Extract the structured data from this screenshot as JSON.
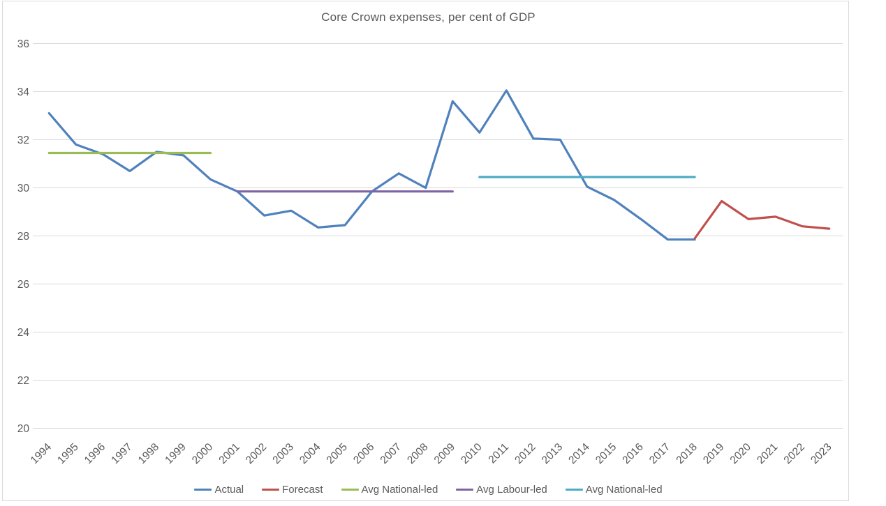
{
  "title": "Core Crown expenses, per cent of GDP",
  "chart_data": {
    "type": "line",
    "title": "Core Crown expenses, per cent of GDP",
    "x": [
      1994,
      1995,
      1996,
      1997,
      1998,
      1999,
      2000,
      2001,
      2002,
      2003,
      2004,
      2005,
      2006,
      2007,
      2008,
      2009,
      2010,
      2011,
      2012,
      2013,
      2014,
      2015,
      2016,
      2017,
      2018,
      2019,
      2020,
      2021,
      2022,
      2023
    ],
    "yticks": [
      20,
      22,
      24,
      26,
      28,
      30,
      32,
      34,
      36
    ],
    "ylim": [
      20,
      36
    ],
    "ylabel": "",
    "xlabel": "",
    "grid": true,
    "legend_position": "bottom",
    "axis_text_color": "#595959",
    "grid_color": "#d9d9d9",
    "frame_color": "#d9d9d9",
    "title_color": "#595959",
    "line_width": 3.2,
    "series": [
      {
        "name": "Actual",
        "color": "#4F81BD",
        "x_start": 1994,
        "values": [
          33.1,
          31.8,
          31.4,
          30.7,
          31.5,
          31.35,
          30.35,
          29.85,
          28.85,
          29.05,
          28.35,
          28.45,
          29.85,
          30.6,
          30.0,
          33.6,
          32.3,
          34.05,
          32.05,
          32.0,
          30.05,
          29.5,
          28.7,
          27.85,
          27.85
        ]
      },
      {
        "name": "Forecast",
        "color": "#C0504D",
        "x_start": 2018,
        "values": [
          27.9,
          29.45,
          28.7,
          28.8,
          28.4,
          28.3
        ]
      },
      {
        "name": "Avg National-led",
        "color": "#9BBB59",
        "x_start": 1994,
        "values": [
          31.45,
          31.45,
          31.45,
          31.45,
          31.45,
          31.45,
          31.45
        ]
      },
      {
        "name": "Avg Labour-led",
        "color": "#8064A2",
        "x_start": 2001,
        "values": [
          29.85,
          29.85,
          29.85,
          29.85,
          29.85,
          29.85,
          29.85,
          29.85,
          29.85
        ]
      },
      {
        "name": "Avg National-led",
        "color": "#4BACC6",
        "x_start": 2010,
        "values": [
          30.45,
          30.45,
          30.45,
          30.45,
          30.45,
          30.45,
          30.45,
          30.45,
          30.45
        ]
      }
    ]
  }
}
